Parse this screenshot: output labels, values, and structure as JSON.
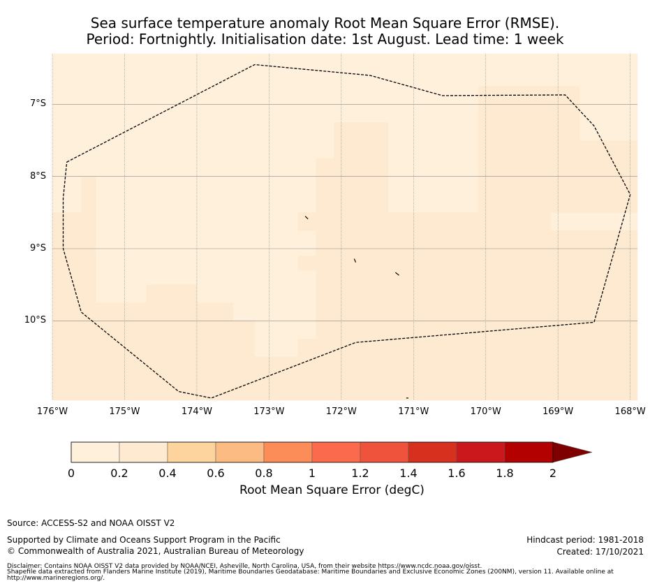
{
  "title": {
    "line1": "Sea surface temperature anomaly Root Mean Square Error (RMSE).",
    "line2": "Period: Fortnightly. Initialisation date: 1st August. Lead time: 1 week"
  },
  "map": {
    "lon_range": [
      -176,
      -167.9
    ],
    "lat_range": [
      -11.1,
      -6.3
    ],
    "y_ticks": [
      {
        "lat": -7,
        "label": "7°S"
      },
      {
        "lat": -8,
        "label": "8°S"
      },
      {
        "lat": -9,
        "label": "9°S"
      },
      {
        "lat": -10,
        "label": "10°S"
      }
    ],
    "x_ticks": [
      {
        "lon": -176,
        "label": "176°W"
      },
      {
        "lon": -175,
        "label": "175°W"
      },
      {
        "lon": -174,
        "label": "174°W"
      },
      {
        "lon": -173,
        "label": "173°W"
      },
      {
        "lon": -172,
        "label": "172°W"
      },
      {
        "lon": -171,
        "label": "171°W"
      },
      {
        "lon": -170,
        "label": "170°W"
      },
      {
        "lon": -169,
        "label": "169°W"
      },
      {
        "lon": -168,
        "label": "168°W"
      }
    ],
    "eez_boundary": [
      [
        -175.8,
        -7.8
      ],
      [
        -173.2,
        -6.45
      ],
      [
        -171.6,
        -6.6
      ],
      [
        -170.6,
        -6.88
      ],
      [
        -168.9,
        -6.87
      ],
      [
        -168.5,
        -7.3
      ],
      [
        -168.0,
        -8.25
      ],
      [
        -168.5,
        -10.02
      ],
      [
        -171.8,
        -10.3
      ],
      [
        -173.8,
        -11.07
      ],
      [
        -174.25,
        -10.98
      ],
      [
        -175.6,
        -9.88
      ],
      [
        -175.85,
        -9.0
      ],
      [
        -175.85,
        -8.3
      ],
      [
        -175.8,
        -7.8
      ]
    ],
    "islands": [
      [
        [
          -172.5,
          -8.55
        ],
        [
          -172.46,
          -8.59
        ]
      ],
      [
        [
          -171.82,
          -9.14
        ],
        [
          -171.8,
          -9.19
        ]
      ],
      [
        [
          -171.25,
          -9.33
        ],
        [
          -171.2,
          -9.37
        ]
      ],
      [
        [
          -171.1,
          -11.07
        ],
        [
          -171.07,
          -11.07
        ]
      ]
    ],
    "rmse_bands": [
      {
        "value": 0.1,
        "regions": [
          [
            [
              -176,
              -6.3
            ],
            [
              -175.4,
              -6.3
            ],
            [
              -175.4,
              -7.8
            ],
            [
              -175.6,
              -7.8
            ],
            [
              -175.6,
              -8.3
            ],
            [
              -176,
              -8.3
            ]
          ],
          [
            [
              -173.2,
              -6.55
            ],
            [
              -172.6,
              -6.55
            ],
            [
              -172.6,
              -10.9
            ],
            [
              -173.2,
              -10.9
            ]
          ],
          [
            [
              -175.1,
              -6.5
            ],
            [
              -174.0,
              -6.5
            ],
            [
              -174.0,
              -7.0
            ],
            [
              -175.1,
              -7.0
            ]
          ],
          [
            [
              -175.4,
              -8.3
            ],
            [
              -174.7,
              -8.3
            ],
            [
              -174.7,
              -9.5
            ],
            [
              -175.4,
              -9.5
            ]
          ],
          [
            [
              -174.7,
              -7.0
            ],
            [
              -172.6,
              -7.0
            ],
            [
              -172.6,
              -9.5
            ],
            [
              -174.7,
              -9.5
            ]
          ],
          [
            [
              -174.0,
              -9.5
            ],
            [
              -172.6,
              -9.5
            ],
            [
              -172.6,
              -9.75
            ],
            [
              -174.0,
              -9.75
            ]
          ],
          [
            [
              -173.5,
              -9.75
            ],
            [
              -172.6,
              -9.75
            ],
            [
              -172.6,
              -10.0
            ],
            [
              -173.5,
              -10.0
            ]
          ],
          [
            [
              -173.2,
              -10.0
            ],
            [
              -172.1,
              -10.0
            ],
            [
              -172.1,
              -10.5
            ],
            [
              -173.2,
              -10.5
            ]
          ],
          [
            [
              -172.6,
              -6.3
            ],
            [
              -171.3,
              -6.3
            ],
            [
              -171.3,
              -7.25
            ],
            [
              -172.6,
              -7.25
            ]
          ],
          [
            [
              -172.6,
              -7.25
            ],
            [
              -172.1,
              -7.25
            ],
            [
              -172.1,
              -7.75
            ],
            [
              -172.6,
              -7.75
            ]
          ],
          [
            [
              -172.6,
              -7.75
            ],
            [
              -172.35,
              -7.75
            ],
            [
              -172.35,
              -8.5
            ],
            [
              -172.6,
              -8.5
            ]
          ],
          [
            [
              -171.3,
              -6.3
            ],
            [
              -167.9,
              -6.3
            ],
            [
              -167.9,
              -6.75
            ],
            [
              -171.3,
              -6.75
            ]
          ],
          [
            [
              -171.3,
              -6.75
            ],
            [
              -170.1,
              -6.75
            ],
            [
              -170.1,
              -8.0
            ],
            [
              -171.3,
              -8.0
            ]
          ],
          [
            [
              -171.35,
              -8.0
            ],
            [
              -170.1,
              -8.0
            ],
            [
              -170.1,
              -8.25
            ],
            [
              -171.35,
              -8.25
            ]
          ],
          [
            [
              -171.1,
              -8.25
            ],
            [
              -170.1,
              -8.25
            ],
            [
              -170.1,
              -8.5
            ],
            [
              -171.1,
              -8.5
            ]
          ],
          [
            [
              -170.85,
              -8.5
            ],
            [
              -170.6,
              -8.5
            ],
            [
              -170.6,
              -8.75
            ],
            [
              -170.85,
              -8.75
            ]
          ],
          [
            [
              -168.7,
              -6.75
            ],
            [
              -167.9,
              -6.75
            ],
            [
              -167.9,
              -7.5
            ],
            [
              -168.7,
              -7.5
            ]
          ],
          [
            [
              -168.6,
              -7.75
            ],
            [
              -168.35,
              -7.75
            ],
            [
              -168.35,
              -8.0
            ],
            [
              -168.6,
              -8.0
            ]
          ],
          [
            [
              -169.6,
              -8.25
            ],
            [
              -169.1,
              -8.25
            ],
            [
              -169.1,
              -9.0
            ],
            [
              -169.6,
              -9.0
            ]
          ],
          [
            [
              -169.1,
              -8.5
            ],
            [
              -167.9,
              -8.5
            ],
            [
              -167.9,
              -9.25
            ],
            [
              -169.1,
              -9.25
            ]
          ],
          [
            [
              -169.9,
              -8.75
            ],
            [
              -169.1,
              -8.75
            ],
            [
              -169.1,
              -8.95
            ],
            [
              -169.9,
              -8.95
            ]
          ],
          [
            [
              -169.35,
              -9.25
            ],
            [
              -167.9,
              -9.25
            ],
            [
              -167.9,
              -9.5
            ],
            [
              -169.35,
              -9.5
            ]
          ],
          [
            [
              -168.85,
              -9.5
            ],
            [
              -167.9,
              -9.5
            ],
            [
              -167.9,
              -9.75
            ],
            [
              -168.85,
              -9.75
            ]
          ],
          [
            [
              -168.35,
              -9.75
            ],
            [
              -167.9,
              -9.75
            ],
            [
              -167.9,
              -10.25
            ],
            [
              -168.35,
              -10.25
            ]
          ],
          [
            [
              -168.1,
              -10.25
            ],
            [
              -167.9,
              -10.25
            ],
            [
              -167.9,
              -10.5
            ],
            [
              -168.1,
              -10.5
            ]
          ],
          [
            [
              -170.1,
              -7.6
            ],
            [
              -169.8,
              -7.6
            ],
            [
              -169.8,
              -7.95
            ],
            [
              -170.1,
              -7.95
            ]
          ],
          [
            [
              -171.6,
              -10.8
            ],
            [
              -171.35,
              -10.8
            ],
            [
              -171.35,
              -11.05
            ],
            [
              -171.6,
              -11.05
            ]
          ]
        ]
      },
      {
        "value": 0.3,
        "regions": [
          [
            [
              -176,
              -8.5
            ],
            [
              -175.4,
              -8.5
            ],
            [
              -175.4,
              -11.1
            ],
            [
              -176,
              -11.1
            ]
          ],
          [
            [
              -175.6,
              -8.0
            ],
            [
              -175.4,
              -8.0
            ],
            [
              -175.4,
              -8.5
            ],
            [
              -175.6,
              -8.5
            ]
          ],
          [
            [
              -175.4,
              -9.75
            ],
            [
              -174.7,
              -9.75
            ],
            [
              -174.7,
              -11.1
            ],
            [
              -175.4,
              -11.1
            ]
          ],
          [
            [
              -174.7,
              -9.5
            ],
            [
              -174.0,
              -9.5
            ],
            [
              -174.0,
              -11.1
            ],
            [
              -174.7,
              -11.1
            ]
          ],
          [
            [
              -174.0,
              -9.75
            ],
            [
              -173.5,
              -9.75
            ],
            [
              -173.5,
              -11.1
            ],
            [
              -174.0,
              -11.1
            ]
          ],
          [
            [
              -173.5,
              -10.0
            ],
            [
              -173.2,
              -10.0
            ],
            [
              -173.2,
              -11.1
            ],
            [
              -173.5,
              -11.1
            ]
          ],
          [
            [
              -173.2,
              -10.5
            ],
            [
              -172.6,
              -10.5
            ],
            [
              -172.6,
              -11.1
            ],
            [
              -173.2,
              -11.1
            ]
          ],
          [
            [
              -172.6,
              -10.25
            ],
            [
              -167.9,
              -10.25
            ],
            [
              -167.9,
              -11.1
            ],
            [
              -172.6,
              -11.1
            ]
          ],
          [
            [
              -172.35,
              -8.75
            ],
            [
              -167.9,
              -8.75
            ],
            [
              -167.9,
              -10.25
            ],
            [
              -172.35,
              -10.25
            ]
          ],
          [
            [
              -172.1,
              -7.25
            ],
            [
              -171.35,
              -7.25
            ],
            [
              -171.35,
              -8.75
            ],
            [
              -172.1,
              -8.75
            ]
          ],
          [
            [
              -172.35,
              -7.75
            ],
            [
              -172.1,
              -7.75
            ],
            [
              -172.1,
              -8.75
            ],
            [
              -172.35,
              -8.75
            ]
          ],
          [
            [
              -172.6,
              -8.5
            ],
            [
              -172.35,
              -8.5
            ],
            [
              -172.35,
              -8.75
            ],
            [
              -172.6,
              -8.75
            ]
          ],
          [
            [
              -171.35,
              -8.5
            ],
            [
              -170.1,
              -8.5
            ],
            [
              -170.1,
              -8.75
            ],
            [
              -171.35,
              -8.75
            ]
          ],
          [
            [
              -170.1,
              -6.75
            ],
            [
              -168.7,
              -6.75
            ],
            [
              -168.7,
              -8.5
            ],
            [
              -170.1,
              -8.5
            ]
          ],
          [
            [
              -170.1,
              -8.5
            ],
            [
              -169.1,
              -8.5
            ],
            [
              -169.1,
              -8.75
            ],
            [
              -170.1,
              -8.75
            ]
          ],
          [
            [
              -168.7,
              -7.5
            ],
            [
              -167.9,
              -7.5
            ],
            [
              -167.9,
              -8.5
            ],
            [
              -168.7,
              -8.5
            ]
          ],
          [
            [
              -172.6,
              -9.1
            ],
            [
              -172.35,
              -9.1
            ],
            [
              -172.35,
              -9.3
            ],
            [
              -172.6,
              -9.3
            ]
          ]
        ]
      }
    ]
  },
  "colorbar": {
    "colors": [
      "#fff0dc",
      "#feead0",
      "#fdd49e",
      "#fdbb84",
      "#fc8d59",
      "#fc6a4d",
      "#ef533b",
      "#d7301f",
      "#cb181d",
      "#b30000",
      "#7f0000"
    ],
    "bounds": [
      0,
      0.2,
      0.4,
      0.6,
      0.8,
      1,
      1.2,
      1.4,
      1.6,
      1.8,
      2
    ],
    "tick_labels": [
      "0",
      "0.2",
      "0.4",
      "0.6",
      "0.8",
      "1",
      "1.2",
      "1.4",
      "1.6",
      "1.8",
      "2"
    ],
    "label": "Root Mean Square Error (degC)"
  },
  "footer": {
    "source": "Source: ACCESS-S2 and NOAA OISST V2",
    "supported": "Supported by Climate and Oceans Support Program in the Pacific",
    "copyright": "© Commonwealth of Australia 2021, Australian Bureau of Meteorology",
    "hindcast": "Hindcast period: 1981-2018",
    "created": "Created: 17/10/2021",
    "disclaimer1": "Disclaimer: Contains NOAA OISST V2 data provided by NOAA/NCEI, Asheville, North Carolina, USA, from their website https://www.ncdc.noaa.gov/oisst.",
    "disclaimer2": "Shapefile data extracted from Flanders Marine Institute (2019), Maritime Boundaries Geodatabase: Maritime Boundaries and Exclusive Economic Zones (200NM), version 11. Available online at",
    "disclaimer3": "http://www.marineregions.org/."
  }
}
